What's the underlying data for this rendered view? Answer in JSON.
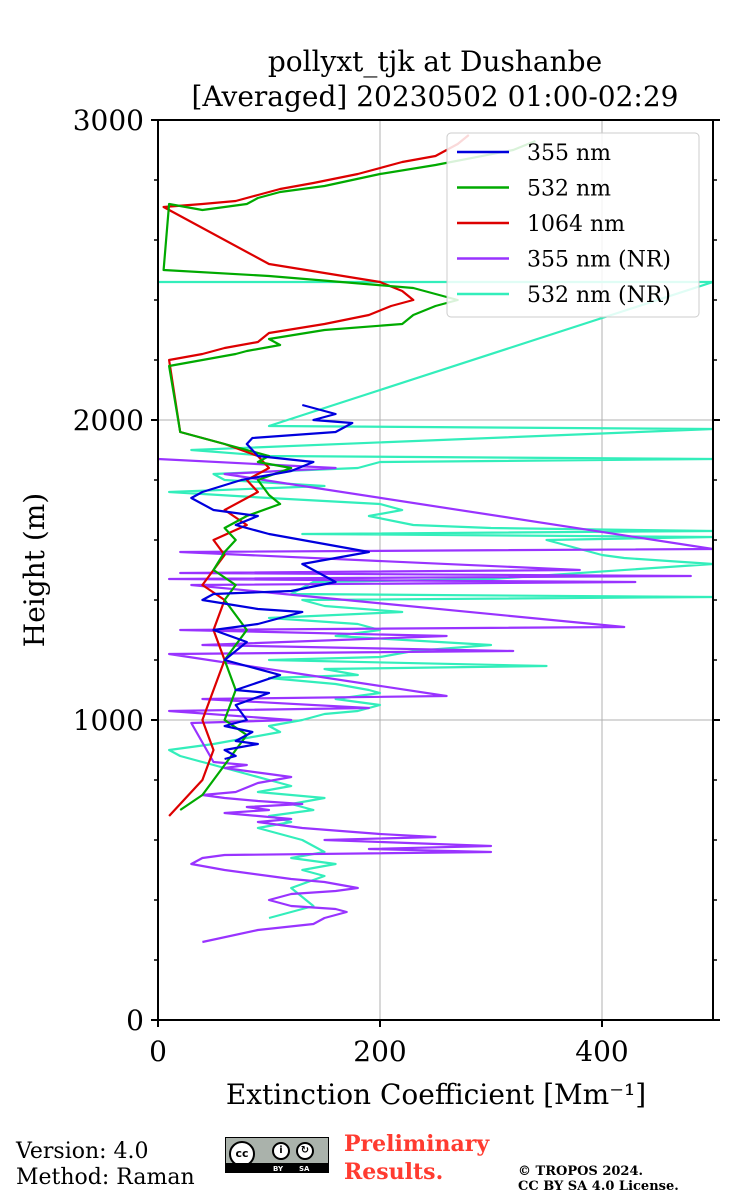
{
  "chart_data": {
    "type": "line",
    "title": "pollyxt_tjk at Dushanbe",
    "subtitle": "[Averaged] 20230502 01:00-02:29",
    "xlabel": "Extinction Coefficient [Mm⁻¹]",
    "ylabel": "Height (m)",
    "xlim": [
      0,
      500
    ],
    "ylim": [
      0,
      3000
    ],
    "xticks": [
      "0",
      "200",
      "400"
    ],
    "yticks": [
      "0",
      "1000",
      "2000",
      "3000"
    ],
    "grid": true,
    "legend_position": "top-right",
    "series": [
      {
        "name": "355 nm",
        "color": "#0000dd",
        "x": [
          130,
          160,
          140,
          175,
          160,
          85,
          80,
          90,
          140,
          120,
          75,
          40,
          30,
          50,
          90,
          70,
          100,
          190,
          130,
          160,
          120,
          50,
          40,
          90,
          130,
          90,
          50,
          80,
          60,
          110,
          70,
          100,
          70,
          80,
          60,
          85,
          70,
          90,
          60,
          70,
          60
        ],
        "y": [
          2050,
          2020,
          2000,
          1990,
          1960,
          1940,
          1920,
          1880,
          1860,
          1830,
          1800,
          1760,
          1740,
          1700,
          1680,
          1650,
          1620,
          1560,
          1520,
          1460,
          1430,
          1420,
          1400,
          1370,
          1360,
          1320,
          1300,
          1260,
          1200,
          1150,
          1100,
          1090,
          1050,
          1000,
          980,
          960,
          930,
          920,
          900,
          880,
          870
        ]
      },
      {
        "name": "532 nm",
        "color": "#00aa00",
        "x": [
          340,
          320,
          250,
          200,
          150,
          110,
          90,
          80,
          60,
          40,
          10,
          5,
          100,
          230,
          250,
          270,
          250,
          230,
          220,
          150,
          100,
          110,
          80,
          70,
          40,
          10,
          20,
          40,
          60,
          80,
          100,
          90,
          120,
          90,
          100,
          110,
          80,
          60,
          70,
          60,
          50,
          70,
          60,
          80,
          60,
          70,
          60,
          80,
          70,
          60,
          50,
          40,
          20
        ],
        "y": [
          2930,
          2900,
          2850,
          2820,
          2780,
          2760,
          2740,
          2720,
          2710,
          2700,
          2720,
          2500,
          2480,
          2440,
          2420,
          2400,
          2380,
          2350,
          2320,
          2300,
          2270,
          2250,
          2230,
          2220,
          2200,
          2180,
          1960,
          1940,
          1920,
          1900,
          1880,
          1860,
          1840,
          1800,
          1750,
          1720,
          1680,
          1640,
          1600,
          1560,
          1500,
          1450,
          1400,
          1300,
          1200,
          1100,
          1000,
          950,
          900,
          850,
          800,
          750,
          700
        ]
      },
      {
        "name": "1064 nm",
        "color": "#dd0000",
        "x": [
          280,
          270,
          250,
          220,
          180,
          140,
          110,
          90,
          70,
          40,
          5,
          100,
          200,
          220,
          230,
          210,
          190,
          150,
          100,
          90,
          60,
          40,
          10,
          20,
          40,
          60,
          90,
          100,
          80,
          90,
          60,
          80,
          50,
          60,
          40,
          60,
          50,
          60,
          50,
          40,
          50,
          40,
          20,
          10
        ],
        "y": [
          2950,
          2920,
          2880,
          2860,
          2820,
          2790,
          2770,
          2750,
          2730,
          2720,
          2710,
          2520,
          2460,
          2430,
          2400,
          2380,
          2350,
          2320,
          2290,
          2260,
          2240,
          2220,
          2200,
          1960,
          1940,
          1920,
          1880,
          1840,
          1800,
          1760,
          1700,
          1650,
          1600,
          1550,
          1450,
          1400,
          1300,
          1200,
          1100,
          1000,
          900,
          800,
          720,
          680
        ]
      },
      {
        "name": "355 nm (NR)",
        "color": "#9933ff",
        "x": [
          0,
          160,
          60,
          500,
          20,
          380,
          20,
          480,
          10,
          430,
          30,
          420,
          20,
          260,
          40,
          320,
          10,
          260,
          40,
          190,
          10,
          120,
          30,
          50,
          80,
          60,
          100,
          120,
          90,
          70,
          40,
          60,
          90,
          130,
          80,
          100,
          60,
          120,
          90,
          130,
          200,
          250,
          150,
          300,
          190,
          300,
          60,
          40,
          30,
          60,
          100,
          120,
          150,
          180,
          160,
          120,
          100,
          120,
          160,
          170,
          150,
          140,
          90,
          40
        ],
        "y": [
          1870,
          1840,
          1820,
          1570,
          1560,
          1500,
          1490,
          1480,
          1470,
          1460,
          1450,
          1310,
          1300,
          1280,
          1250,
          1230,
          1220,
          1080,
          1070,
          1040,
          1030,
          1000,
          990,
          860,
          850,
          840,
          820,
          810,
          790,
          760,
          750,
          740,
          730,
          720,
          710,
          700,
          690,
          670,
          660,
          640,
          620,
          610,
          600,
          580,
          570,
          560,
          550,
          540,
          520,
          500,
          480,
          470,
          460,
          440,
          430,
          420,
          400,
          380,
          370,
          360,
          340,
          320,
          300,
          260
        ]
      },
      {
        "name": "532 nm (NR)",
        "color": "#33eebb",
        "x": [
          0,
          500,
          100,
          500,
          30,
          100,
          500,
          200,
          180,
          50,
          60,
          150,
          10,
          100,
          200,
          220,
          190,
          230,
          300,
          500,
          130,
          500,
          350,
          400,
          420,
          500,
          300,
          140,
          120,
          500,
          130,
          150,
          220,
          100,
          180,
          200,
          160,
          300,
          230,
          200,
          100,
          350,
          150,
          180,
          100,
          160,
          190,
          200,
          160,
          200,
          180,
          150,
          130,
          100,
          110,
          80,
          50,
          10,
          20,
          40,
          60,
          80,
          100,
          120,
          90,
          150,
          120,
          140,
          100,
          120,
          90,
          110,
          130,
          140,
          150,
          120,
          160,
          130,
          150,
          120,
          140,
          100
        ],
        "y": [
          2460,
          2460,
          1980,
          1970,
          1900,
          1880,
          1870,
          1860,
          1840,
          1820,
          1800,
          1780,
          1760,
          1740,
          1720,
          1700,
          1680,
          1650,
          1640,
          1630,
          1620,
          1610,
          1600,
          1550,
          1540,
          1520,
          1470,
          1460,
          1420,
          1410,
          1400,
          1380,
          1360,
          1340,
          1320,
          1300,
          1280,
          1250,
          1230,
          1210,
          1200,
          1180,
          1170,
          1150,
          1140,
          1120,
          1100,
          1090,
          1070,
          1050,
          1030,
          1020,
          1000,
          980,
          960,
          940,
          920,
          900,
          880,
          860,
          840,
          820,
          800,
          780,
          760,
          740,
          720,
          700,
          680,
          660,
          640,
          620,
          600,
          580,
          560,
          540,
          520,
          500,
          480,
          440,
          380,
          340
        ]
      }
    ]
  },
  "footer": {
    "version": "Version: 4.0",
    "method": "Method: Raman",
    "license_badge": "cc-by-sa-icon",
    "prelim_line1": "Preliminary",
    "prelim_line2": "Results.",
    "copyright_line1": "© TROPOS 2024.",
    "copyright_line2": "CC BY SA 4.0 License."
  }
}
